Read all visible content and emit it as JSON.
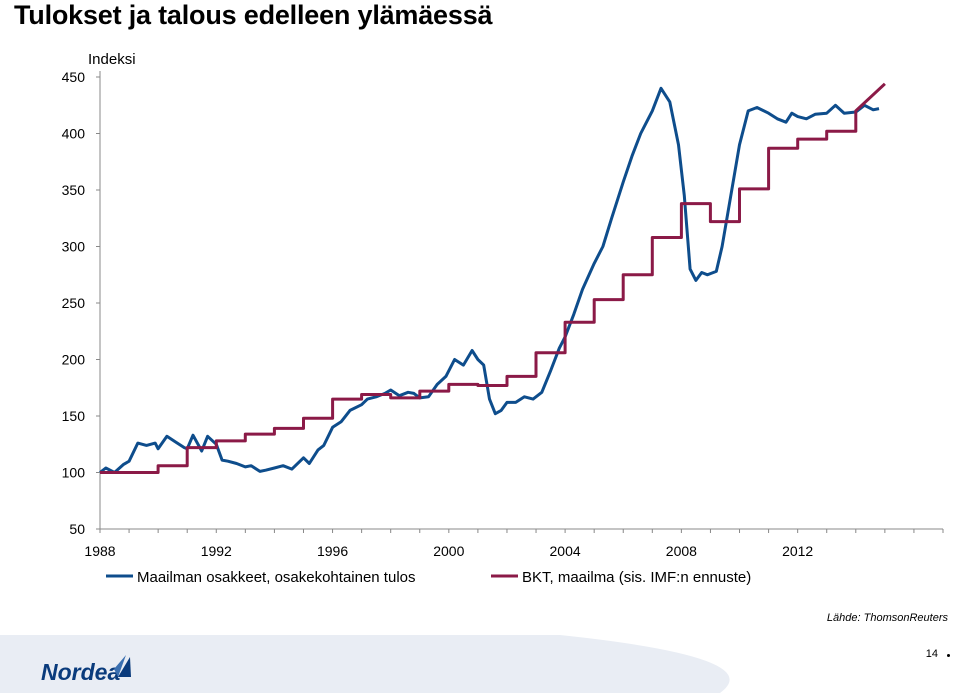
{
  "title": "Tulokset ja talous edelleen ylämäessä",
  "source": "Lähde: ThomsonReuters",
  "page_number": "14",
  "logo_text": "Nordea",
  "colors": {
    "series_stocks": "#0e4d8c",
    "series_gdp": "#8b1a47",
    "footer_bg": "#eef1f6",
    "logo_blue": "#0a3b7c"
  },
  "chart_data": {
    "type": "line",
    "title": "Tulokset ja talous edelleen ylämäessä",
    "ylabel": "Indeksi",
    "xlabel": "",
    "ylim": [
      50,
      450
    ],
    "yticks": [
      50,
      100,
      150,
      200,
      250,
      300,
      350,
      400,
      450
    ],
    "xlim": [
      1988,
      2017
    ],
    "xticks": [
      1988,
      1992,
      1996,
      2000,
      2004,
      2008,
      2012
    ],
    "grid": false,
    "legend": "bottom",
    "series": [
      {
        "name": "Maailman osakkeet, osakekohtainen tulos",
        "color": "#0e4d8c",
        "x": [
          1988.0,
          1988.2,
          1988.5,
          1988.8,
          1989.0,
          1989.3,
          1989.6,
          1989.9,
          1990.0,
          1990.3,
          1990.6,
          1990.9,
          1991.0,
          1991.2,
          1991.5,
          1991.7,
          1992.0,
          1992.2,
          1992.4,
          1992.7,
          1993.0,
          1993.2,
          1993.5,
          1993.7,
          1994.0,
          1994.3,
          1994.6,
          1995.0,
          1995.2,
          1995.5,
          1995.7,
          1996.0,
          1996.3,
          1996.6,
          1997.0,
          1997.2,
          1997.5,
          1997.8,
          1998.0,
          1998.3,
          1998.6,
          1998.8,
          1999.0,
          1999.3,
          1999.6,
          1999.9,
          2000.2,
          2000.5,
          2000.8,
          2001.0,
          2001.2,
          2001.4,
          2001.6,
          2001.8,
          2002.0,
          2002.3,
          2002.6,
          2002.9,
          2003.2,
          2003.5,
          2003.8,
          2004.0,
          2004.3,
          2004.6,
          2005.0,
          2005.3,
          2005.6,
          2006.0,
          2006.3,
          2006.6,
          2007.0,
          2007.3,
          2007.6,
          2007.9,
          2008.1,
          2008.3,
          2008.5,
          2008.7,
          2008.9,
          2009.0,
          2009.2,
          2009.4,
          2009.6,
          2009.8,
          2010.0,
          2010.3,
          2010.6,
          2011.0,
          2011.3,
          2011.6,
          2011.8,
          2012.0,
          2012.3,
          2012.6,
          2013.0,
          2013.3,
          2013.6,
          2014.0,
          2014.3,
          2014.6,
          2014.8
        ],
        "y": [
          100,
          104,
          100,
          107,
          110,
          126,
          124,
          126,
          121,
          132,
          127,
          122,
          121,
          133,
          119,
          132,
          125,
          111,
          110,
          108,
          105,
          106,
          101,
          102,
          104,
          106,
          103,
          113,
          108,
          120,
          124,
          140,
          145,
          155,
          160,
          165,
          167,
          170,
          173,
          168,
          171,
          170,
          166,
          167,
          178,
          185,
          200,
          195,
          208,
          200,
          195,
          165,
          152,
          155,
          162,
          162,
          167,
          165,
          171,
          190,
          210,
          220,
          240,
          262,
          285,
          300,
          325,
          357,
          380,
          400,
          420,
          440,
          428,
          390,
          345,
          280,
          270,
          277,
          275,
          276,
          278,
          300,
          330,
          360,
          390,
          420,
          423,
          418,
          413,
          410,
          418,
          415,
          413,
          417,
          418,
          425,
          418,
          419,
          425,
          421,
          422
        ],
        "visible": true
      },
      {
        "name": "BKT, maailma (sis. IMF:n ennuste)",
        "color": "#8b1a47",
        "x": [
          1988,
          1990,
          1990,
          1991,
          1991,
          1992,
          1992,
          1993,
          1993,
          1994,
          1994,
          1995,
          1995,
          1996,
          1996,
          1997,
          1997,
          1998,
          1998,
          1999,
          1999,
          2000,
          2000,
          2001,
          2001,
          2002,
          2002,
          2003,
          2003,
          2004,
          2004,
          2005,
          2005,
          2006,
          2006,
          2007,
          2007,
          2008,
          2008,
          2009,
          2009,
          2010,
          2010,
          2011,
          2011,
          2012,
          2012,
          2013,
          2013,
          2014,
          2014,
          2015
        ],
        "y": [
          100,
          100,
          106,
          106,
          122,
          122,
          128,
          128,
          134,
          134,
          139,
          139,
          148,
          148,
          165,
          165,
          169,
          169,
          166,
          166,
          172,
          172,
          178,
          178,
          177,
          177,
          185,
          185,
          206,
          206,
          233,
          233,
          253,
          253,
          275,
          275,
          308,
          308,
          338,
          338,
          322,
          322,
          351,
          351,
          387,
          387,
          395,
          395,
          402,
          402,
          420,
          444
        ]
      }
    ]
  },
  "legend": {
    "items": [
      {
        "label": "Maailman osakkeet, osakekohtainen tulos",
        "color": "#0e4d8c"
      },
      {
        "label": "BKT, maailma (sis. IMF:n ennuste)",
        "color": "#8b1a47"
      }
    ]
  }
}
